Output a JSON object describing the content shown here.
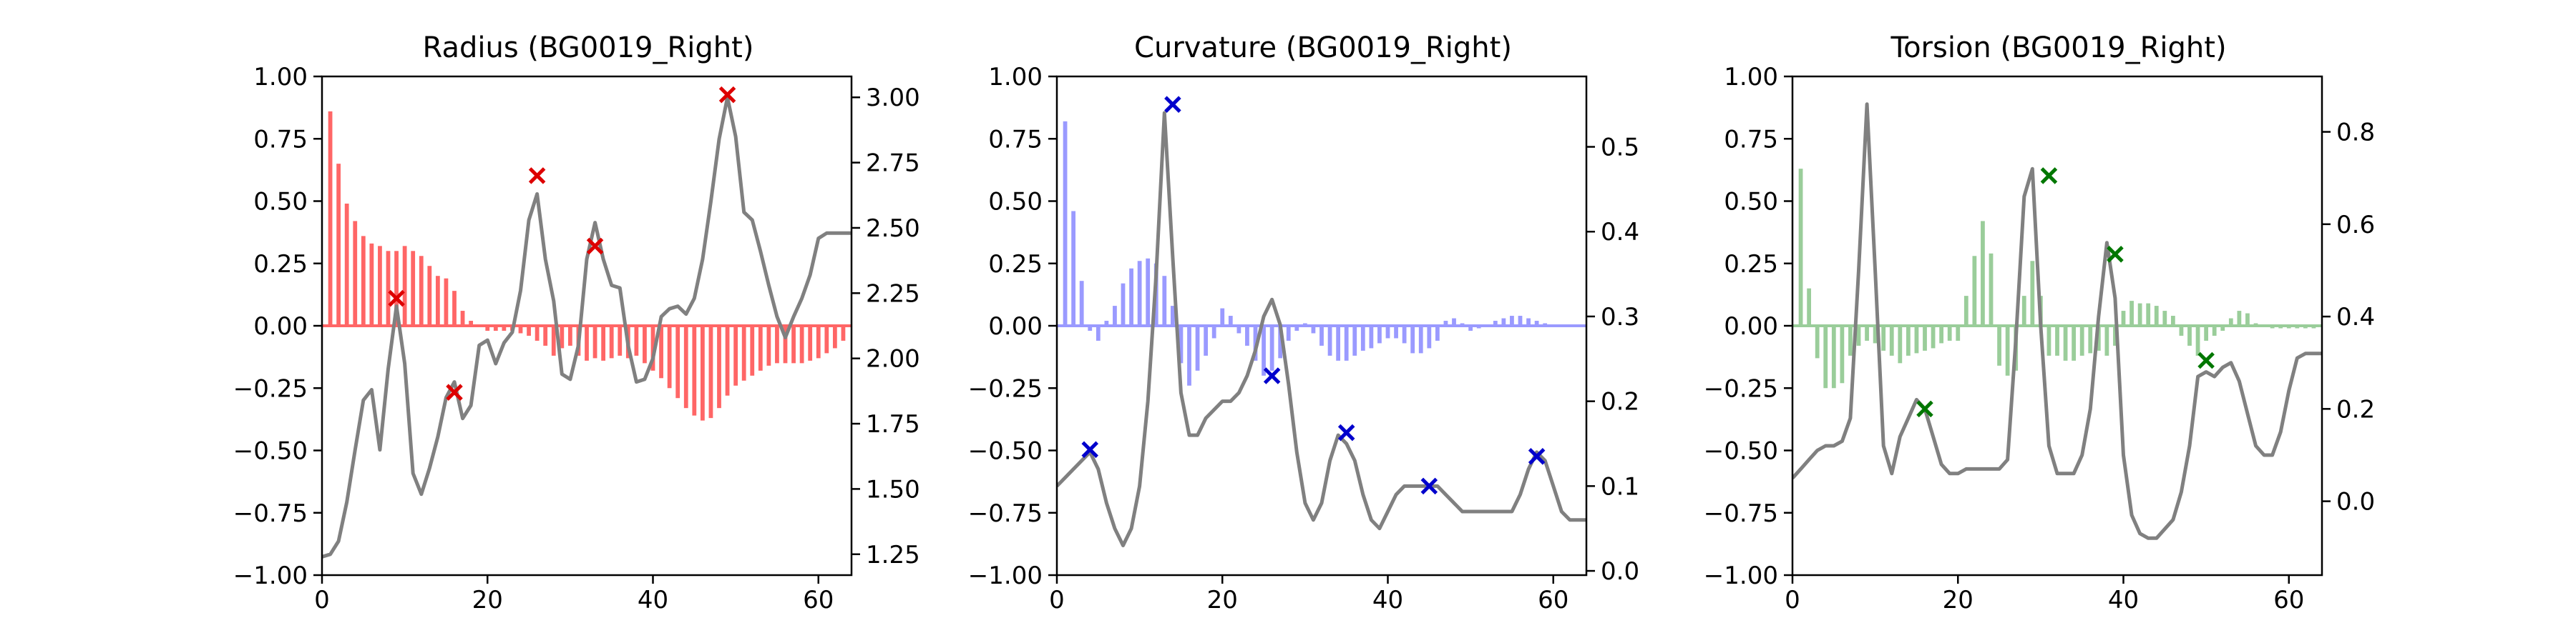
{
  "chart_data": [
    {
      "type": "bar",
      "title": "Radius (BG0019_Right)",
      "bar_color": "#ff6666",
      "marker_color": "#dd0000",
      "line_color": "#808080",
      "xlim": [
        0,
        64
      ],
      "ylim_left": [
        -1.0,
        1.0
      ],
      "ylim_right": [
        1.17,
        3.08
      ],
      "x_ticks": [
        0,
        20,
        40,
        60
      ],
      "x_tick_labels": [
        "0",
        "20",
        "40",
        "60"
      ],
      "y_left_ticks": [
        -1.0,
        -0.75,
        -0.5,
        -0.25,
        0.0,
        0.25,
        0.5,
        0.75,
        1.0
      ],
      "y_left_tick_labels": [
        "−1.00",
        "−0.75",
        "−0.50",
        "−0.25",
        "0.00",
        "0.25",
        "0.50",
        "0.75",
        "1.00"
      ],
      "y_right_ticks": [
        1.25,
        1.5,
        1.75,
        2.0,
        2.25,
        2.5,
        2.75,
        3.0
      ],
      "y_right_tick_labels": [
        "1.25",
        "1.50",
        "1.75",
        "2.00",
        "2.25",
        "2.50",
        "2.75",
        "3.00"
      ],
      "bars": {
        "x": [
          1,
          2,
          3,
          4,
          5,
          6,
          7,
          8,
          9,
          10,
          11,
          12,
          13,
          14,
          15,
          16,
          17,
          18,
          19,
          20,
          21,
          22,
          23,
          24,
          25,
          26,
          27,
          28,
          29,
          30,
          31,
          32,
          33,
          34,
          35,
          36,
          37,
          38,
          39,
          40,
          41,
          42,
          43,
          44,
          45,
          46,
          47,
          48,
          49,
          50,
          51,
          52,
          53,
          54,
          55,
          56,
          57,
          58,
          59,
          60,
          61,
          62,
          63
        ],
        "values": [
          0.86,
          0.65,
          0.49,
          0.42,
          0.36,
          0.33,
          0.32,
          0.3,
          0.3,
          0.32,
          0.3,
          0.28,
          0.24,
          0.2,
          0.19,
          0.14,
          0.06,
          0.02,
          0.0,
          -0.02,
          -0.02,
          -0.02,
          -0.02,
          -0.03,
          -0.04,
          -0.06,
          -0.08,
          -0.12,
          -0.09,
          -0.08,
          -0.12,
          -0.14,
          -0.13,
          -0.14,
          -0.13,
          -0.12,
          -0.13,
          -0.12,
          -0.15,
          -0.18,
          -0.21,
          -0.25,
          -0.29,
          -0.33,
          -0.36,
          -0.38,
          -0.37,
          -0.33,
          -0.28,
          -0.24,
          -0.22,
          -0.2,
          -0.18,
          -0.16,
          -0.15,
          -0.15,
          -0.15,
          -0.15,
          -0.14,
          -0.13,
          -0.11,
          -0.09,
          -0.06
        ]
      },
      "line": {
        "x": [
          0,
          1,
          2,
          3,
          4,
          5,
          6,
          7,
          8,
          9,
          10,
          11,
          12,
          13,
          14,
          15,
          16,
          17,
          18,
          19,
          20,
          21,
          22,
          23,
          24,
          25,
          26,
          27,
          28,
          29,
          30,
          31,
          32,
          33,
          34,
          35,
          36,
          37,
          38,
          39,
          40,
          41,
          42,
          43,
          44,
          45,
          46,
          47,
          48,
          49,
          50,
          51,
          52,
          53,
          54,
          55,
          56,
          57,
          58,
          59,
          60,
          61,
          62,
          63,
          64
        ],
        "values": [
          1.24,
          1.25,
          1.3,
          1.45,
          1.65,
          1.84,
          1.88,
          1.65,
          1.96,
          2.2,
          1.98,
          1.56,
          1.48,
          1.58,
          1.7,
          1.85,
          1.91,
          1.77,
          1.82,
          2.05,
          2.07,
          1.98,
          2.06,
          2.1,
          2.26,
          2.53,
          2.63,
          2.38,
          2.22,
          1.94,
          1.92,
          2.05,
          2.38,
          2.52,
          2.38,
          2.28,
          2.27,
          2.05,
          1.91,
          1.92,
          2.0,
          2.16,
          2.19,
          2.2,
          2.17,
          2.23,
          2.38,
          2.6,
          2.84,
          3.0,
          2.85,
          2.56,
          2.53,
          2.41,
          2.28,
          2.16,
          2.08,
          2.16,
          2.23,
          2.32,
          2.46,
          2.48,
          2.48,
          2.48,
          2.48
        ]
      },
      "markers": {
        "x": [
          9,
          16,
          26,
          33,
          49
        ],
        "values": [
          2.23,
          1.87,
          2.7,
          2.43,
          3.01
        ]
      }
    },
    {
      "type": "bar",
      "title": "Curvature (BG0019_Right)",
      "bar_color": "#9a9aff",
      "marker_color": "#0000cc",
      "line_color": "#808080",
      "xlim": [
        0,
        64
      ],
      "ylim_left": [
        -1.0,
        1.0
      ],
      "ylim_right": [
        -0.005,
        0.583
      ],
      "x_ticks": [
        0,
        20,
        40,
        60
      ],
      "x_tick_labels": [
        "0",
        "20",
        "40",
        "60"
      ],
      "y_left_ticks": [
        -1.0,
        -0.75,
        -0.5,
        -0.25,
        0.0,
        0.25,
        0.5,
        0.75,
        1.0
      ],
      "y_left_tick_labels": [
        "−1.00",
        "−0.75",
        "−0.50",
        "−0.25",
        "0.00",
        "0.25",
        "0.50",
        "0.75",
        "1.00"
      ],
      "y_right_ticks": [
        0.0,
        0.1,
        0.2,
        0.3,
        0.4,
        0.5
      ],
      "y_right_tick_labels": [
        "0.0",
        "0.1",
        "0.2",
        "0.3",
        "0.4",
        "0.5"
      ],
      "bars": {
        "x": [
          1,
          2,
          3,
          4,
          5,
          6,
          7,
          8,
          9,
          10,
          11,
          12,
          13,
          14,
          15,
          16,
          17,
          18,
          19,
          20,
          21,
          22,
          23,
          24,
          25,
          26,
          27,
          28,
          29,
          30,
          31,
          32,
          33,
          34,
          35,
          36,
          37,
          38,
          39,
          40,
          41,
          42,
          43,
          44,
          45,
          46,
          47,
          48,
          49,
          50,
          51,
          52,
          53,
          54,
          55,
          56,
          57,
          58,
          59,
          60,
          61,
          62,
          63
        ],
        "values": [
          0.82,
          0.46,
          0.18,
          -0.02,
          -0.06,
          0.02,
          0.08,
          0.17,
          0.23,
          0.26,
          0.27,
          0.25,
          0.2,
          0.08,
          -0.15,
          -0.24,
          -0.18,
          -0.12,
          -0.05,
          0.07,
          0.04,
          -0.03,
          -0.08,
          -0.14,
          -0.2,
          -0.18,
          -0.13,
          -0.06,
          -0.02,
          0.01,
          -0.03,
          -0.08,
          -0.12,
          -0.14,
          -0.14,
          -0.12,
          -0.1,
          -0.09,
          -0.07,
          -0.05,
          -0.05,
          -0.07,
          -0.11,
          -0.11,
          -0.09,
          -0.06,
          0.02,
          0.03,
          0.01,
          -0.02,
          -0.01,
          0.0,
          0.02,
          0.03,
          0.04,
          0.04,
          0.03,
          0.02,
          0.01,
          0.0,
          0.0,
          0.0,
          0.0
        ]
      },
      "line": {
        "x": [
          0,
          1,
          2,
          3,
          4,
          5,
          6,
          7,
          8,
          9,
          10,
          11,
          12,
          13,
          14,
          15,
          16,
          17,
          18,
          19,
          20,
          21,
          22,
          23,
          24,
          25,
          26,
          27,
          28,
          29,
          30,
          31,
          32,
          33,
          34,
          35,
          36,
          37,
          38,
          39,
          40,
          41,
          42,
          43,
          44,
          45,
          46,
          47,
          48,
          49,
          50,
          51,
          52,
          53,
          54,
          55,
          56,
          57,
          58,
          59,
          60,
          61,
          62,
          63,
          64
        ],
        "values": [
          0.1,
          0.11,
          0.12,
          0.13,
          0.14,
          0.12,
          0.08,
          0.05,
          0.03,
          0.05,
          0.1,
          0.2,
          0.35,
          0.54,
          0.37,
          0.21,
          0.16,
          0.16,
          0.18,
          0.19,
          0.2,
          0.2,
          0.21,
          0.23,
          0.26,
          0.3,
          0.32,
          0.29,
          0.22,
          0.14,
          0.08,
          0.06,
          0.08,
          0.13,
          0.16,
          0.15,
          0.13,
          0.09,
          0.06,
          0.05,
          0.07,
          0.09,
          0.1,
          0.1,
          0.1,
          0.1,
          0.1,
          0.09,
          0.08,
          0.07,
          0.07,
          0.07,
          0.07,
          0.07,
          0.07,
          0.07,
          0.09,
          0.12,
          0.14,
          0.13,
          0.1,
          0.07,
          0.06,
          0.06,
          0.06
        ]
      },
      "markers": {
        "x": [
          4,
          14,
          26,
          35,
          45,
          58
        ],
        "values": [
          0.143,
          0.55,
          0.23,
          0.163,
          0.1,
          0.135
        ]
      }
    },
    {
      "type": "bar",
      "title": "Torsion (BG0019_Right)",
      "bar_color": "#9acd9a",
      "marker_color": "#007700",
      "line_color": "#808080",
      "xlim": [
        0,
        64
      ],
      "ylim_left": [
        -1.0,
        1.0
      ],
      "ylim_right": [
        -0.16,
        0.92
      ],
      "x_ticks": [
        0,
        20,
        40,
        60
      ],
      "x_tick_labels": [
        "0",
        "20",
        "40",
        "60"
      ],
      "y_left_ticks": [
        -1.0,
        -0.75,
        -0.5,
        -0.25,
        0.0,
        0.25,
        0.5,
        0.75,
        1.0
      ],
      "y_left_tick_labels": [
        "−1.00",
        "−0.75",
        "−0.50",
        "−0.25",
        "0.00",
        "0.25",
        "0.50",
        "0.75",
        "1.00"
      ],
      "y_right_ticks": [
        0.0,
        0.2,
        0.4,
        0.6,
        0.8
      ],
      "y_right_tick_labels": [
        "0.0",
        "0.2",
        "0.4",
        "0.6",
        "0.8"
      ],
      "bars": {
        "x": [
          1,
          2,
          3,
          4,
          5,
          6,
          7,
          8,
          9,
          10,
          11,
          12,
          13,
          14,
          15,
          16,
          17,
          18,
          19,
          20,
          21,
          22,
          23,
          24,
          25,
          26,
          27,
          28,
          29,
          30,
          31,
          32,
          33,
          34,
          35,
          36,
          37,
          38,
          39,
          40,
          41,
          42,
          43,
          44,
          45,
          46,
          47,
          48,
          49,
          50,
          51,
          52,
          53,
          54,
          55,
          56,
          57,
          58,
          59,
          60,
          61,
          62,
          63
        ],
        "values": [
          0.63,
          0.15,
          -0.13,
          -0.25,
          -0.25,
          -0.23,
          -0.12,
          -0.08,
          -0.06,
          -0.07,
          -0.1,
          -0.12,
          -0.15,
          -0.12,
          -0.11,
          -0.1,
          -0.09,
          -0.07,
          -0.06,
          -0.06,
          0.12,
          0.28,
          0.42,
          0.29,
          -0.16,
          -0.2,
          -0.18,
          0.12,
          0.26,
          0.12,
          -0.12,
          -0.12,
          -0.14,
          -0.14,
          -0.12,
          -0.11,
          -0.1,
          -0.12,
          -0.08,
          0.06,
          0.1,
          0.09,
          0.09,
          0.08,
          0.06,
          0.04,
          -0.04,
          -0.08,
          -0.12,
          -0.06,
          -0.04,
          -0.02,
          0.03,
          0.06,
          0.05,
          0.01,
          0.0,
          -0.01,
          -0.01,
          -0.01,
          -0.01,
          -0.01,
          -0.01
        ]
      },
      "line": {
        "x": [
          0,
          1,
          2,
          3,
          4,
          5,
          6,
          7,
          8,
          9,
          10,
          11,
          12,
          13,
          14,
          15,
          16,
          17,
          18,
          19,
          20,
          21,
          22,
          23,
          24,
          25,
          26,
          27,
          28,
          29,
          30,
          31,
          32,
          33,
          34,
          35,
          36,
          37,
          38,
          39,
          40,
          41,
          42,
          43,
          44,
          45,
          46,
          47,
          48,
          49,
          50,
          51,
          52,
          53,
          54,
          55,
          56,
          57,
          58,
          59,
          60,
          61,
          62,
          63,
          64
        ],
        "values": [
          0.05,
          0.07,
          0.09,
          0.11,
          0.12,
          0.12,
          0.13,
          0.18,
          0.5,
          0.86,
          0.5,
          0.12,
          0.06,
          0.14,
          0.18,
          0.22,
          0.2,
          0.14,
          0.08,
          0.06,
          0.06,
          0.07,
          0.07,
          0.07,
          0.07,
          0.07,
          0.09,
          0.35,
          0.66,
          0.72,
          0.38,
          0.12,
          0.06,
          0.06,
          0.06,
          0.1,
          0.2,
          0.4,
          0.56,
          0.44,
          0.1,
          -0.03,
          -0.07,
          -0.08,
          -0.08,
          -0.06,
          -0.04,
          0.02,
          0.12,
          0.27,
          0.28,
          0.27,
          0.29,
          0.3,
          0.26,
          0.19,
          0.12,
          0.1,
          0.1,
          0.15,
          0.24,
          0.31,
          0.32,
          0.32,
          0.32
        ]
      },
      "markers": {
        "x": [
          16,
          31,
          39,
          50
        ],
        "values": [
          0.2,
          0.705,
          0.535,
          0.305
        ]
      }
    }
  ]
}
